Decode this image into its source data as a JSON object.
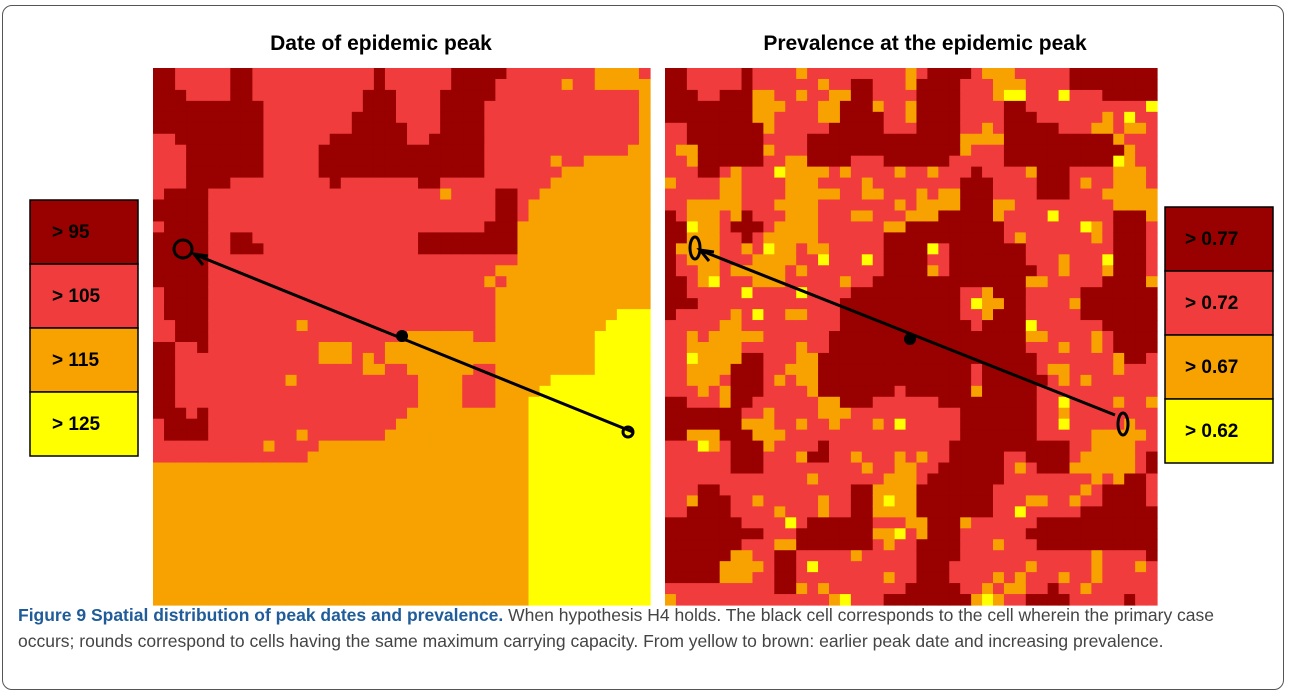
{
  "figure": {
    "panels": [
      {
        "title": "Date of epidemic peak",
        "legend": [
          {
            "label": "> 95",
            "color": "#990000"
          },
          {
            "label": "> 105",
            "color": "#f03c3c"
          },
          {
            "label": "> 115",
            "color": "#f7a200"
          },
          {
            "label": "> 125",
            "color": "#ffff00"
          }
        ]
      },
      {
        "title": "Prevalence at the epidemic peak",
        "legend": [
          {
            "label": "> 0.77",
            "color": "#990000"
          },
          {
            "label": "> 0.72",
            "color": "#f03c3c"
          },
          {
            "label": "> 0.67",
            "color": "#f7a200"
          },
          {
            "label": "> 0.62",
            "color": "#ffff00"
          }
        ]
      }
    ],
    "caption": {
      "label": "Figure 9",
      "title": "Spatial distribution of peak dates and prevalence.",
      "text": "When hypothesis H4 holds. The black cell corresponds to the cell wherein the primary case occurs; rounds correspond to cells having the same maximum carrying capacity. From yellow to brown: earlier peak date and increasing prevalence."
    }
  }
}
